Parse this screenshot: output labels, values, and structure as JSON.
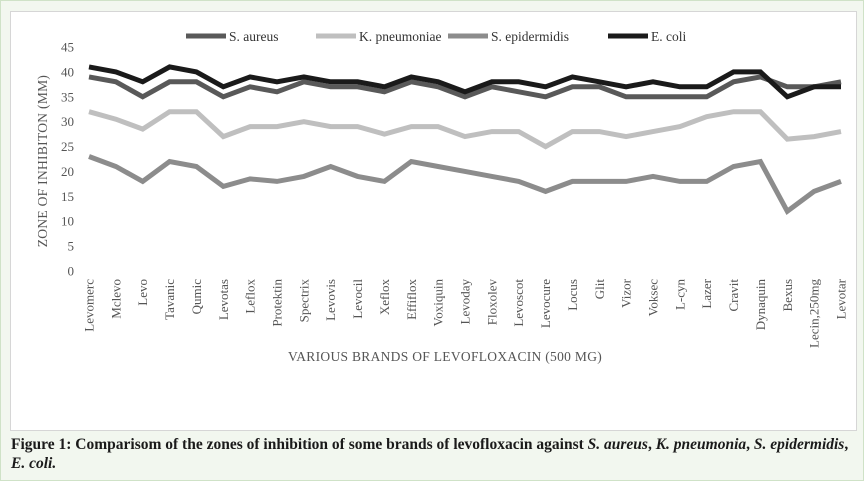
{
  "caption": {
    "lead": "Figure 1: Comparisom of the zones of inhibition of some brands of levofloxacin against ",
    "org1": "S. aureus",
    "sep1": ", ",
    "org2": "K. pneumonia",
    "sep2": ", ",
    "org3": "S. epidermidis",
    "sep3": ", ",
    "org4": "E. coli.",
    "tail": ""
  },
  "chart_data": {
    "type": "line",
    "title": "",
    "xlabel": "VARIOUS BRANDS OF LEVOFLOXACIN (500 MG)",
    "ylabel": "ZONE OF INHIBITON (MM)",
    "ylim": [
      0,
      45
    ],
    "yticks": [
      0,
      5,
      10,
      15,
      20,
      25,
      30,
      35,
      40,
      45
    ],
    "grid": false,
    "legend": "top",
    "categories": [
      "Levomerc",
      "Mclevo",
      "Levo",
      "Tavanic",
      "Qumic",
      "Levotas",
      "Leflox",
      "Protektin",
      "Spectrix",
      "Levovis",
      "Levocil",
      "Xeflox",
      "Effiflox",
      "Voxiquin",
      "Levoday",
      "Floxolev",
      "Levoscot",
      "Levocure",
      "Locus",
      "Glit",
      "Vizor",
      "Voksec",
      "L-cyn",
      "Lazer",
      "Cravit",
      "Dynaquin",
      "Bexus",
      "Lecin,250mg",
      "Levotar"
    ],
    "series": [
      {
        "name": "S. aureus",
        "color": "#595959",
        "values": [
          39,
          38,
          35,
          38,
          38,
          35,
          37,
          36,
          38,
          37,
          37,
          36,
          38,
          37,
          35,
          37,
          36,
          35,
          37,
          37,
          35,
          35,
          35,
          35,
          38,
          39,
          37,
          37,
          38
        ]
      },
      {
        "name": "K. pneumoniae",
        "color": "#bfbfbf",
        "values": [
          32,
          30.5,
          28.5,
          32,
          32,
          27,
          29,
          29,
          30,
          29,
          29,
          27.5,
          29,
          29,
          27,
          28,
          28,
          25,
          28,
          28,
          27,
          28,
          29,
          31,
          32,
          32,
          26.5,
          27,
          28
        ]
      },
      {
        "name": "S. epidermidis",
        "color": "#8c8c8c",
        "values": [
          23,
          21,
          18,
          22,
          21,
          17,
          18.5,
          18,
          19,
          21,
          19,
          18,
          22,
          21,
          20,
          19,
          18,
          16,
          18,
          18,
          18,
          19,
          18,
          18,
          21,
          22,
          12,
          16,
          18
        ]
      },
      {
        "name": "E. coli",
        "color": "#1a1a1a",
        "values": [
          41,
          40,
          38,
          41,
          40,
          37,
          39,
          38,
          39,
          38,
          38,
          37,
          39,
          38,
          36,
          38,
          38,
          37,
          39,
          38,
          37,
          38,
          37,
          37,
          40,
          40,
          35,
          37,
          37
        ]
      }
    ]
  }
}
